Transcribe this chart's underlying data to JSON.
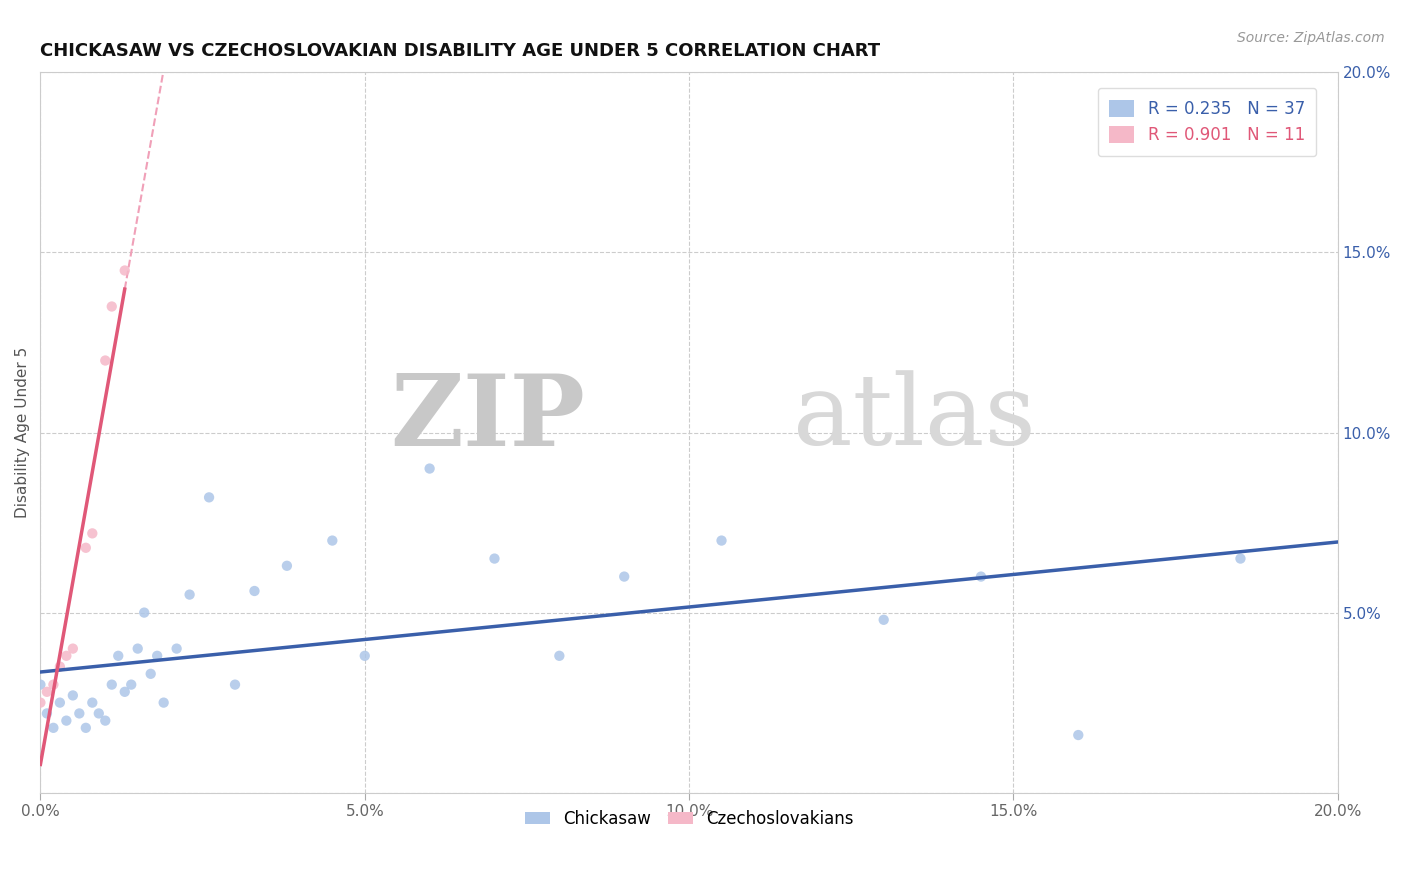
{
  "title": "CHICKASAW VS CZECHOSLOVAKIAN DISABILITY AGE UNDER 5 CORRELATION CHART",
  "source_text": "Source: ZipAtlas.com",
  "ylabel": "Disability Age Under 5",
  "xlim": [
    0.0,
    0.2
  ],
  "ylim": [
    0.0,
    0.2
  ],
  "x_ticks": [
    0.0,
    0.05,
    0.1,
    0.15,
    0.2
  ],
  "y_ticks": [
    0.0,
    0.05,
    0.1,
    0.15,
    0.2
  ],
  "x_tick_labels": [
    "0.0%",
    "5.0%",
    "10.0%",
    "15.0%",
    "20.0%"
  ],
  "y_tick_labels_left": [
    "",
    "",
    "",
    "",
    ""
  ],
  "y_tick_labels_right": [
    "",
    "5.0%",
    "10.0%",
    "15.0%",
    "20.0%"
  ],
  "watermark_zip": "ZIP",
  "watermark_atlas": "atlas",
  "chickasaw_r": 0.235,
  "chickasaw_n": 37,
  "czech_r": 0.901,
  "czech_n": 11,
  "chickasaw_color": "#adc6e8",
  "czech_color": "#f5b8c8",
  "chickasaw_line_color": "#3a5faa",
  "czech_line_color": "#e05878",
  "czech_dash_color": "#f0a0b8",
  "background_color": "#ffffff",
  "grid_color": "#cccccc",
  "chickasaw_x": [
    0.0,
    0.001,
    0.002,
    0.003,
    0.004,
    0.005,
    0.006,
    0.007,
    0.008,
    0.009,
    0.01,
    0.011,
    0.012,
    0.013,
    0.014,
    0.015,
    0.016,
    0.017,
    0.018,
    0.019,
    0.021,
    0.023,
    0.026,
    0.03,
    0.033,
    0.038,
    0.045,
    0.05,
    0.06,
    0.07,
    0.08,
    0.09,
    0.105,
    0.13,
    0.145,
    0.16,
    0.185
  ],
  "chickasaw_y": [
    0.03,
    0.022,
    0.018,
    0.025,
    0.02,
    0.027,
    0.022,
    0.018,
    0.025,
    0.022,
    0.02,
    0.03,
    0.038,
    0.028,
    0.03,
    0.04,
    0.05,
    0.033,
    0.038,
    0.025,
    0.04,
    0.055,
    0.082,
    0.03,
    0.056,
    0.063,
    0.07,
    0.038,
    0.09,
    0.065,
    0.038,
    0.06,
    0.07,
    0.048,
    0.06,
    0.016,
    0.065
  ],
  "czech_x": [
    0.0,
    0.001,
    0.002,
    0.003,
    0.004,
    0.005,
    0.007,
    0.008,
    0.01,
    0.011,
    0.013
  ],
  "czech_y": [
    0.025,
    0.028,
    0.03,
    0.035,
    0.038,
    0.04,
    0.068,
    0.072,
    0.12,
    0.135,
    0.145
  ],
  "title_fontsize": 13,
  "tick_fontsize": 11,
  "ylabel_fontsize": 11,
  "legend_fontsize": 12
}
